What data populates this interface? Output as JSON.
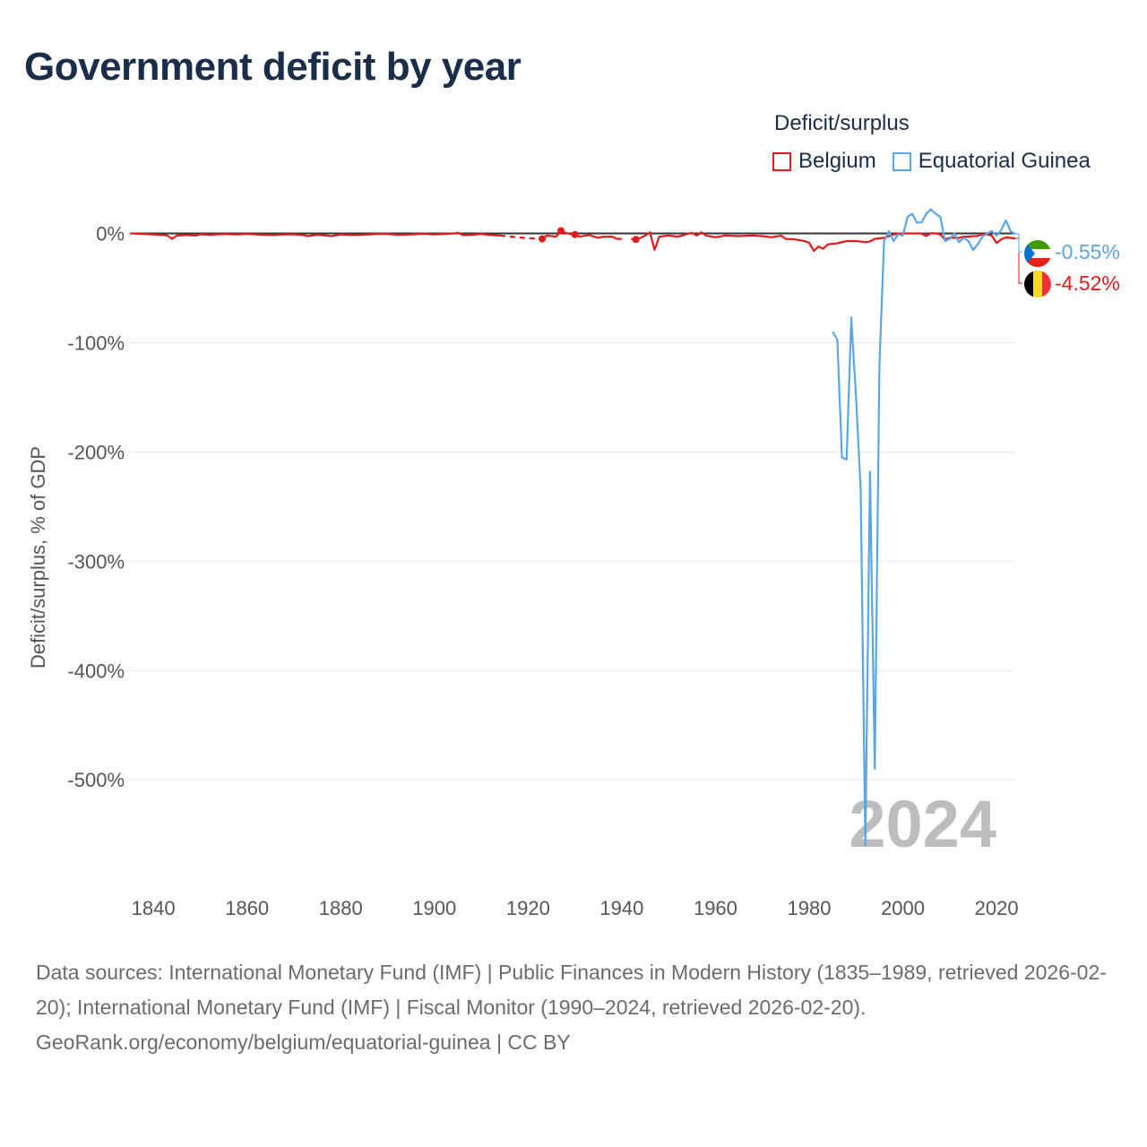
{
  "title": "Government deficit by year",
  "legend": {
    "title": "Deficit/surplus",
    "items": [
      {
        "label": "Belgium",
        "color": "#e31a1c"
      },
      {
        "label": "Equatorial Guinea",
        "color": "#5aa5e6"
      }
    ]
  },
  "footer": {
    "sources": "Data sources: International Monetary Fund (IMF) | Public Finances in Modern History (1835–1989, retrieved 2026-02-20); International Monetary Fund (IMF) | Fiscal Monitor (1990–2024, retrieved 2026-02-20).",
    "credit": "GeoRank.org/economy/belgium/equatorial-guinea | CC BY"
  },
  "chart_data": {
    "type": "line",
    "title": "Government deficit by year",
    "xlabel": "",
    "ylabel": "Deficit/surplus, % of GDP",
    "xlim": [
      1835,
      2024
    ],
    "ylim": [
      -590,
      25
    ],
    "grid": true,
    "year_overlay": "2024",
    "x_ticks": [
      {
        "value": 1840,
        "label": "1840"
      },
      {
        "value": 1860,
        "label": "1860"
      },
      {
        "value": 1880,
        "label": "1880"
      },
      {
        "value": 1900,
        "label": "1900"
      },
      {
        "value": 1920,
        "label": "1920"
      },
      {
        "value": 1940,
        "label": "1940"
      },
      {
        "value": 1960,
        "label": "1960"
      },
      {
        "value": 1980,
        "label": "1980"
      },
      {
        "value": 2000,
        "label": "2000"
      },
      {
        "value": 2020,
        "label": "2020"
      }
    ],
    "y_ticks": [
      {
        "value": 0,
        "label": "0%"
      },
      {
        "value": -100,
        "label": "-100%"
      },
      {
        "value": -200,
        "label": "-200%"
      },
      {
        "value": -300,
        "label": "-300%"
      },
      {
        "value": -400,
        "label": "-400%"
      },
      {
        "value": -500,
        "label": "-500%"
      }
    ],
    "series": [
      {
        "name": "Belgium",
        "color": "#e31a1c",
        "end_label": "-4.52%",
        "flag": "belgium",
        "segments": [
          {
            "style": "solid",
            "points": [
              [
                1835,
                0
              ],
              [
                1838,
                -0.5
              ],
              [
                1840,
                -1
              ],
              [
                1842,
                -1.5
              ],
              [
                1843,
                -2
              ],
              [
                1844,
                -5
              ],
              [
                1845,
                -2
              ],
              [
                1847,
                -1.5
              ],
              [
                1849,
                -2
              ],
              [
                1850,
                -0.8
              ],
              [
                1852,
                -1.2
              ],
              [
                1855,
                -0.6
              ],
              [
                1858,
                -1
              ],
              [
                1860,
                -0.4
              ],
              [
                1862,
                -1
              ],
              [
                1865,
                -1.5
              ],
              [
                1868,
                -1
              ],
              [
                1870,
                -0.8
              ],
              [
                1872,
                -1.5
              ],
              [
                1873,
                -2.5
              ],
              [
                1875,
                -1.2
              ],
              [
                1877,
                -2
              ],
              [
                1878,
                -2.5
              ],
              [
                1880,
                -1
              ],
              [
                1883,
                -1.5
              ],
              [
                1886,
                -1
              ],
              [
                1888,
                -0.6
              ],
              [
                1890,
                -0.4
              ],
              [
                1892,
                -1.2
              ],
              [
                1895,
                -1
              ],
              [
                1898,
                -0.3
              ],
              [
                1900,
                -1
              ],
              [
                1902,
                -0.5
              ],
              [
                1904,
                -0.2
              ],
              [
                1905,
                0.6
              ],
              [
                1906,
                -1.5
              ],
              [
                1908,
                -1.2
              ],
              [
                1910,
                -0.5
              ],
              [
                1912,
                -1.5
              ],
              [
                1914,
                -2
              ]
            ]
          },
          {
            "style": "dashed",
            "points": [
              [
                1914,
                -2
              ],
              [
                1919,
                -4
              ],
              [
                1923,
                -5
              ]
            ]
          },
          {
            "style": "solid",
            "points": [
              [
                1923,
                -5
              ],
              [
                1924,
                -2
              ],
              [
                1925,
                -2.5
              ],
              [
                1926,
                -3
              ],
              [
                1927,
                2.5
              ],
              [
                1928,
                0.5
              ],
              [
                1929,
                -0.5
              ],
              [
                1930,
                -1
              ]
            ]
          },
          {
            "style": "solid",
            "points": [
              [
                1930,
                -1
              ],
              [
                1931,
                -3
              ],
              [
                1933,
                -1.5
              ],
              [
                1935,
                -4
              ],
              [
                1936,
                -3
              ],
              [
                1938,
                -3
              ],
              [
                1939,
                -5
              ],
              [
                1940,
                -5
              ]
            ]
          },
          {
            "style": "solid",
            "points": [
              [
                1942,
                -5
              ],
              [
                1943,
                -5.5
              ],
              [
                1944,
                -4
              ],
              [
                1945,
                -2
              ],
              [
                1946,
                1
              ],
              [
                1947,
                -15
              ],
              [
                1948,
                -3
              ],
              [
                1950,
                -2
              ],
              [
                1952,
                -3
              ],
              [
                1954,
                -0.5
              ],
              [
                1955,
                0.5
              ],
              [
                1956,
                -2
              ],
              [
                1957,
                1
              ],
              [
                1958,
                -2
              ],
              [
                1960,
                -3.5
              ],
              [
                1962,
                -2
              ],
              [
                1965,
                -2.5
              ],
              [
                1968,
                -2
              ],
              [
                1970,
                -2.5
              ],
              [
                1972,
                -3.5
              ],
              [
                1974,
                -2
              ],
              [
                1975,
                -5
              ],
              [
                1977,
                -5.5
              ],
              [
                1979,
                -7
              ],
              [
                1980,
                -8.5
              ],
              [
                1981,
                -16
              ],
              [
                1982,
                -12
              ],
              [
                1983,
                -14
              ],
              [
                1984,
                -10
              ],
              [
                1986,
                -9
              ],
              [
                1988,
                -7
              ],
              [
                1990,
                -7
              ],
              [
                1992,
                -8
              ],
              [
                1993,
                -7.3
              ],
              [
                1994,
                -5
              ],
              [
                1996,
                -4
              ],
              [
                1998,
                -1
              ],
              [
                2000,
                0
              ],
              [
                2002,
                0
              ],
              [
                2004,
                0
              ],
              [
                2005,
                -2.5
              ],
              [
                2006,
                0.2
              ],
              [
                2007,
                0
              ],
              [
                2008,
                -1
              ],
              [
                2009,
                -5.5
              ],
              [
                2010,
                -4
              ],
              [
                2011,
                -4
              ],
              [
                2012,
                -4.2
              ],
              [
                2013,
                -3
              ],
              [
                2014,
                -3
              ],
              [
                2015,
                -2.5
              ],
              [
                2016,
                -2.4
              ],
              [
                2017,
                -0.7
              ],
              [
                2018,
                -0.9
              ],
              [
                2019,
                -2
              ],
              [
                2020,
                -8.9
              ],
              [
                2021,
                -5.4
              ],
              [
                2022,
                -3.6
              ],
              [
                2023,
                -4.1
              ],
              [
                2024,
                -4.52
              ]
            ]
          }
        ],
        "markers": [
          [
            1923,
            -5
          ],
          [
            1927,
            2.5
          ],
          [
            1930,
            -1
          ],
          [
            1943,
            -5.5
          ]
        ]
      },
      {
        "name": "Equatorial Guinea",
        "color": "#5aa5e6",
        "end_label": "-0.55%",
        "flag": "equatorial-guinea",
        "segments": [
          {
            "style": "solid",
            "points": [
              [
                1985,
                -90
              ],
              [
                1986,
                -97
              ],
              [
                1987,
                -205
              ],
              [
                1988,
                -207
              ],
              [
                1989,
                -77
              ],
              [
                1990,
                -150
              ],
              [
                1991,
                -235
              ],
              [
                1992,
                -560
              ],
              [
                1993,
                -218
              ],
              [
                1994,
                -490
              ],
              [
                1995,
                -120
              ],
              [
                1996,
                -7
              ],
              [
                1997,
                2
              ],
              [
                1998,
                -7
              ],
              [
                1999,
                -1
              ],
              [
                2000,
                -2
              ],
              [
                2001,
                15
              ],
              [
                2002,
                18
              ],
              [
                2003,
                10
              ],
              [
                2004,
                10
              ],
              [
                2005,
                18
              ],
              [
                2006,
                22
              ],
              [
                2007,
                18
              ],
              [
                2008,
                15
              ],
              [
                2009,
                -7
              ],
              [
                2010,
                -5
              ],
              [
                2011,
                0
              ],
              [
                2012,
                -8
              ],
              [
                2013,
                -4
              ],
              [
                2014,
                -7
              ],
              [
                2015,
                -15
              ],
              [
                2016,
                -10
              ],
              [
                2017,
                -3
              ],
              [
                2018,
                0
              ],
              [
                2019,
                2
              ],
              [
                2020,
                -2
              ],
              [
                2021,
                3
              ],
              [
                2022,
                12
              ],
              [
                2023,
                2
              ],
              [
                2024,
                -0.55
              ]
            ]
          }
        ],
        "markers": []
      }
    ]
  }
}
